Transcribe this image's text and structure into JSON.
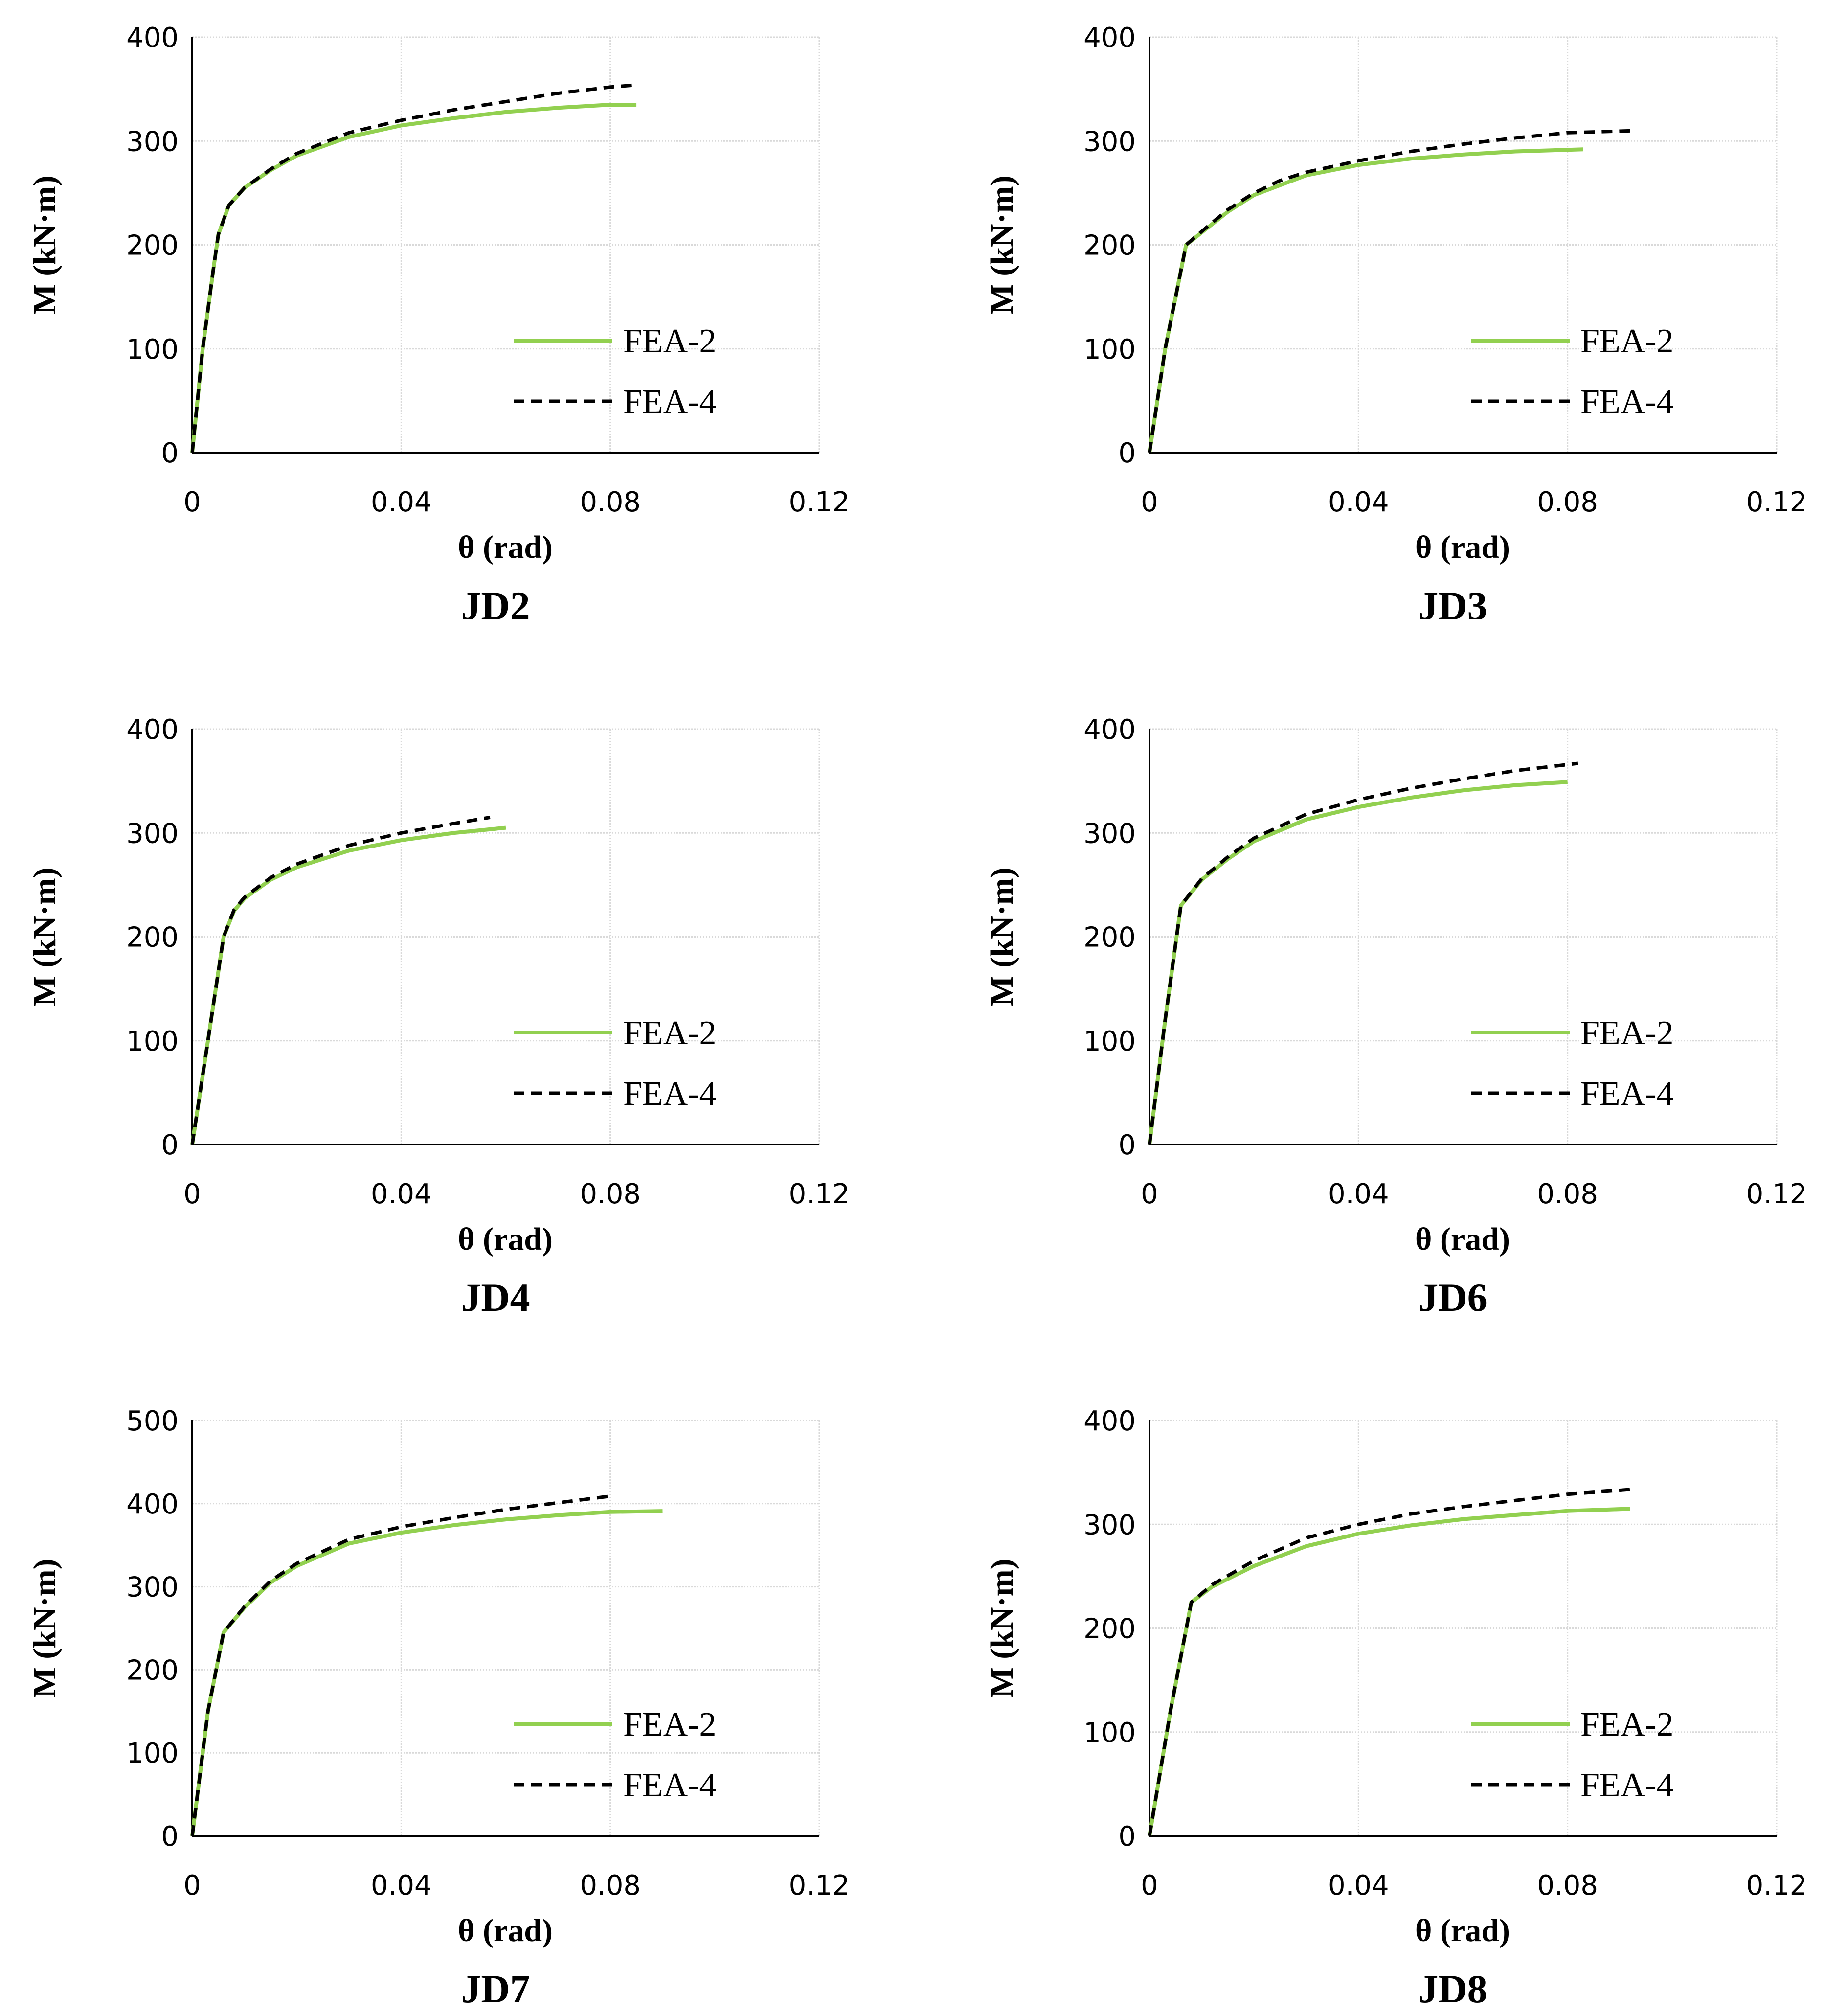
{
  "colors": {
    "fea2": "#92d050",
    "fea4": "#000000",
    "grid": "#d9d9d9"
  },
  "chart_data": [
    {
      "type": "line",
      "title": "JD2",
      "xlabel": "θ (rad)",
      "ylabel": "M (kN·m)",
      "xlim": [
        0,
        0.12
      ],
      "ylim": [
        0,
        400
      ],
      "xticks": [
        "0",
        "0.04",
        "0.08",
        "0.12"
      ],
      "yticks": [
        "0",
        "100",
        "200",
        "300",
        "400"
      ],
      "grid": true,
      "legend": "bottom-right",
      "series": [
        {
          "name": "FEA-2",
          "points": [
            [
              0,
              0
            ],
            [
              0.002,
              100
            ],
            [
              0.004,
              175
            ],
            [
              0.005,
              210
            ],
            [
              0.007,
              238
            ],
            [
              0.01,
              255
            ],
            [
              0.015,
              272
            ],
            [
              0.02,
              286
            ],
            [
              0.03,
              304
            ],
            [
              0.04,
              315
            ],
            [
              0.05,
              322
            ],
            [
              0.06,
              328
            ],
            [
              0.07,
              332
            ],
            [
              0.08,
              335
            ],
            [
              0.085,
              335
            ]
          ]
        },
        {
          "name": "FEA-4",
          "points": [
            [
              0,
              0
            ],
            [
              0.002,
              100
            ],
            [
              0.004,
              175
            ],
            [
              0.005,
              210
            ],
            [
              0.007,
              238
            ],
            [
              0.01,
              255
            ],
            [
              0.015,
              273
            ],
            [
              0.02,
              288
            ],
            [
              0.025,
              298
            ],
            [
              0.03,
              308
            ],
            [
              0.04,
              320
            ],
            [
              0.05,
              330
            ],
            [
              0.06,
              338
            ],
            [
              0.07,
              346
            ],
            [
              0.08,
              352
            ],
            [
              0.085,
              354
            ]
          ]
        }
      ]
    },
    {
      "type": "line",
      "title": "JD3",
      "xlabel": "θ (rad)",
      "ylabel": "M (kN·m)",
      "xlim": [
        0,
        0.12
      ],
      "ylim": [
        0,
        400
      ],
      "xticks": [
        "0",
        "0.04",
        "0.08",
        "0.12"
      ],
      "yticks": [
        "0",
        "100",
        "200",
        "300",
        "400"
      ],
      "grid": true,
      "legend": "bottom-right",
      "series": [
        {
          "name": "FEA-2",
          "points": [
            [
              0,
              0
            ],
            [
              0.003,
              100
            ],
            [
              0.007,
              200
            ],
            [
              0.01,
              212
            ],
            [
              0.015,
              232
            ],
            [
              0.02,
              248
            ],
            [
              0.03,
              267
            ],
            [
              0.04,
              277
            ],
            [
              0.05,
              283
            ],
            [
              0.06,
              287
            ],
            [
              0.07,
              290
            ],
            [
              0.083,
              292
            ]
          ]
        },
        {
          "name": "FEA-4",
          "points": [
            [
              0,
              0
            ],
            [
              0.003,
              100
            ],
            [
              0.007,
              200
            ],
            [
              0.01,
              213
            ],
            [
              0.015,
              234
            ],
            [
              0.02,
              250
            ],
            [
              0.025,
              262
            ],
            [
              0.03,
              270
            ],
            [
              0.04,
              281
            ],
            [
              0.05,
              290
            ],
            [
              0.06,
              297
            ],
            [
              0.07,
              303
            ],
            [
              0.08,
              308
            ],
            [
              0.093,
              310
            ]
          ]
        }
      ]
    },
    {
      "type": "line",
      "title": "JD4",
      "xlabel": "θ (rad)",
      "ylabel": "M (kN·m)",
      "xlim": [
        0,
        0.12
      ],
      "ylim": [
        0,
        400
      ],
      "xticks": [
        "0",
        "0.04",
        "0.08",
        "0.12"
      ],
      "yticks": [
        "0",
        "100",
        "200",
        "300",
        "400"
      ],
      "grid": true,
      "legend": "bottom-right",
      "series": [
        {
          "name": "FEA-2",
          "points": [
            [
              0,
              0
            ],
            [
              0.003,
              100
            ],
            [
              0.006,
              200
            ],
            [
              0.008,
              225
            ],
            [
              0.01,
              237
            ],
            [
              0.015,
              255
            ],
            [
              0.02,
              267
            ],
            [
              0.03,
              283
            ],
            [
              0.04,
              293
            ],
            [
              0.05,
              300
            ],
            [
              0.06,
              305
            ]
          ]
        },
        {
          "name": "FEA-4",
          "points": [
            [
              0,
              0
            ],
            [
              0.003,
              100
            ],
            [
              0.006,
              200
            ],
            [
              0.008,
              226
            ],
            [
              0.01,
              238
            ],
            [
              0.015,
              257
            ],
            [
              0.02,
              270
            ],
            [
              0.03,
              288
            ],
            [
              0.04,
              300
            ],
            [
              0.05,
              309
            ],
            [
              0.057,
              315
            ]
          ]
        }
      ]
    },
    {
      "type": "line",
      "title": "JD6",
      "xlabel": "θ (rad)",
      "ylabel": "M (kN·m)",
      "xlim": [
        0,
        0.12
      ],
      "ylim": [
        0,
        400
      ],
      "xticks": [
        "0",
        "0.04",
        "0.08",
        "0.12"
      ],
      "yticks": [
        "0",
        "100",
        "200",
        "300",
        "400"
      ],
      "grid": true,
      "legend": "bottom-right",
      "series": [
        {
          "name": "FEA-2",
          "points": [
            [
              0,
              0
            ],
            [
              0.003,
              120
            ],
            [
              0.006,
              230
            ],
            [
              0.01,
              255
            ],
            [
              0.015,
              275
            ],
            [
              0.02,
              292
            ],
            [
              0.03,
              313
            ],
            [
              0.04,
              325
            ],
            [
              0.05,
              334
            ],
            [
              0.06,
              341
            ],
            [
              0.07,
              346
            ],
            [
              0.08,
              349
            ]
          ]
        },
        {
          "name": "FEA-4",
          "points": [
            [
              0,
              0
            ],
            [
              0.003,
              120
            ],
            [
              0.006,
              230
            ],
            [
              0.01,
              256
            ],
            [
              0.015,
              277
            ],
            [
              0.02,
              295
            ],
            [
              0.03,
              318
            ],
            [
              0.04,
              332
            ],
            [
              0.05,
              343
            ],
            [
              0.06,
              352
            ],
            [
              0.07,
              360
            ],
            [
              0.082,
              367
            ]
          ]
        }
      ]
    },
    {
      "type": "line",
      "title": "JD7",
      "xlabel": "θ (rad)",
      "ylabel": "M (kN·m)",
      "xlim": [
        0,
        0.12
      ],
      "ylim": [
        0,
        500
      ],
      "xticks": [
        "0",
        "0.04",
        "0.08",
        "0.12"
      ],
      "yticks": [
        "0",
        "100",
        "200",
        "300",
        "400",
        "500"
      ],
      "grid": true,
      "legend": "bottom-right",
      "series": [
        {
          "name": "FEA-2",
          "points": [
            [
              0,
              0
            ],
            [
              0.003,
              150
            ],
            [
              0.006,
              245
            ],
            [
              0.01,
              275
            ],
            [
              0.015,
              305
            ],
            [
              0.02,
              325
            ],
            [
              0.03,
              352
            ],
            [
              0.04,
              365
            ],
            [
              0.05,
              374
            ],
            [
              0.06,
              381
            ],
            [
              0.07,
              386
            ],
            [
              0.08,
              390
            ],
            [
              0.09,
              391
            ]
          ]
        },
        {
          "name": "FEA-4",
          "points": [
            [
              0,
              0
            ],
            [
              0.003,
              150
            ],
            [
              0.006,
              245
            ],
            [
              0.01,
              276
            ],
            [
              0.015,
              307
            ],
            [
              0.02,
              328
            ],
            [
              0.03,
              357
            ],
            [
              0.04,
              372
            ],
            [
              0.05,
              383
            ],
            [
              0.06,
              393
            ],
            [
              0.07,
              401
            ],
            [
              0.08,
              409
            ]
          ]
        }
      ]
    },
    {
      "type": "line",
      "title": "JD8",
      "xlabel": "θ (rad)",
      "ylabel": "M (kN·m)",
      "xlim": [
        0,
        0.12
      ],
      "ylim": [
        0,
        400
      ],
      "xticks": [
        "0",
        "0.04",
        "0.08",
        "0.12"
      ],
      "yticks": [
        "0",
        "100",
        "200",
        "300",
        "400"
      ],
      "grid": true,
      "legend": "bottom-right",
      "series": [
        {
          "name": "FEA-2",
          "points": [
            [
              0,
              0
            ],
            [
              0.004,
              120
            ],
            [
              0.008,
              225
            ],
            [
              0.012,
              240
            ],
            [
              0.02,
              260
            ],
            [
              0.03,
              279
            ],
            [
              0.04,
              291
            ],
            [
              0.05,
              299
            ],
            [
              0.06,
              305
            ],
            [
              0.07,
              309
            ],
            [
              0.08,
              313
            ],
            [
              0.092,
              315
            ]
          ]
        },
        {
          "name": "FEA-4",
          "points": [
            [
              0,
              0
            ],
            [
              0.004,
              120
            ],
            [
              0.008,
              225
            ],
            [
              0.012,
              242
            ],
            [
              0.02,
              265
            ],
            [
              0.03,
              287
            ],
            [
              0.04,
              300
            ],
            [
              0.05,
              310
            ],
            [
              0.06,
              317
            ],
            [
              0.07,
              323
            ],
            [
              0.08,
              329
            ],
            [
              0.093,
              334
            ]
          ]
        }
      ]
    }
  ]
}
